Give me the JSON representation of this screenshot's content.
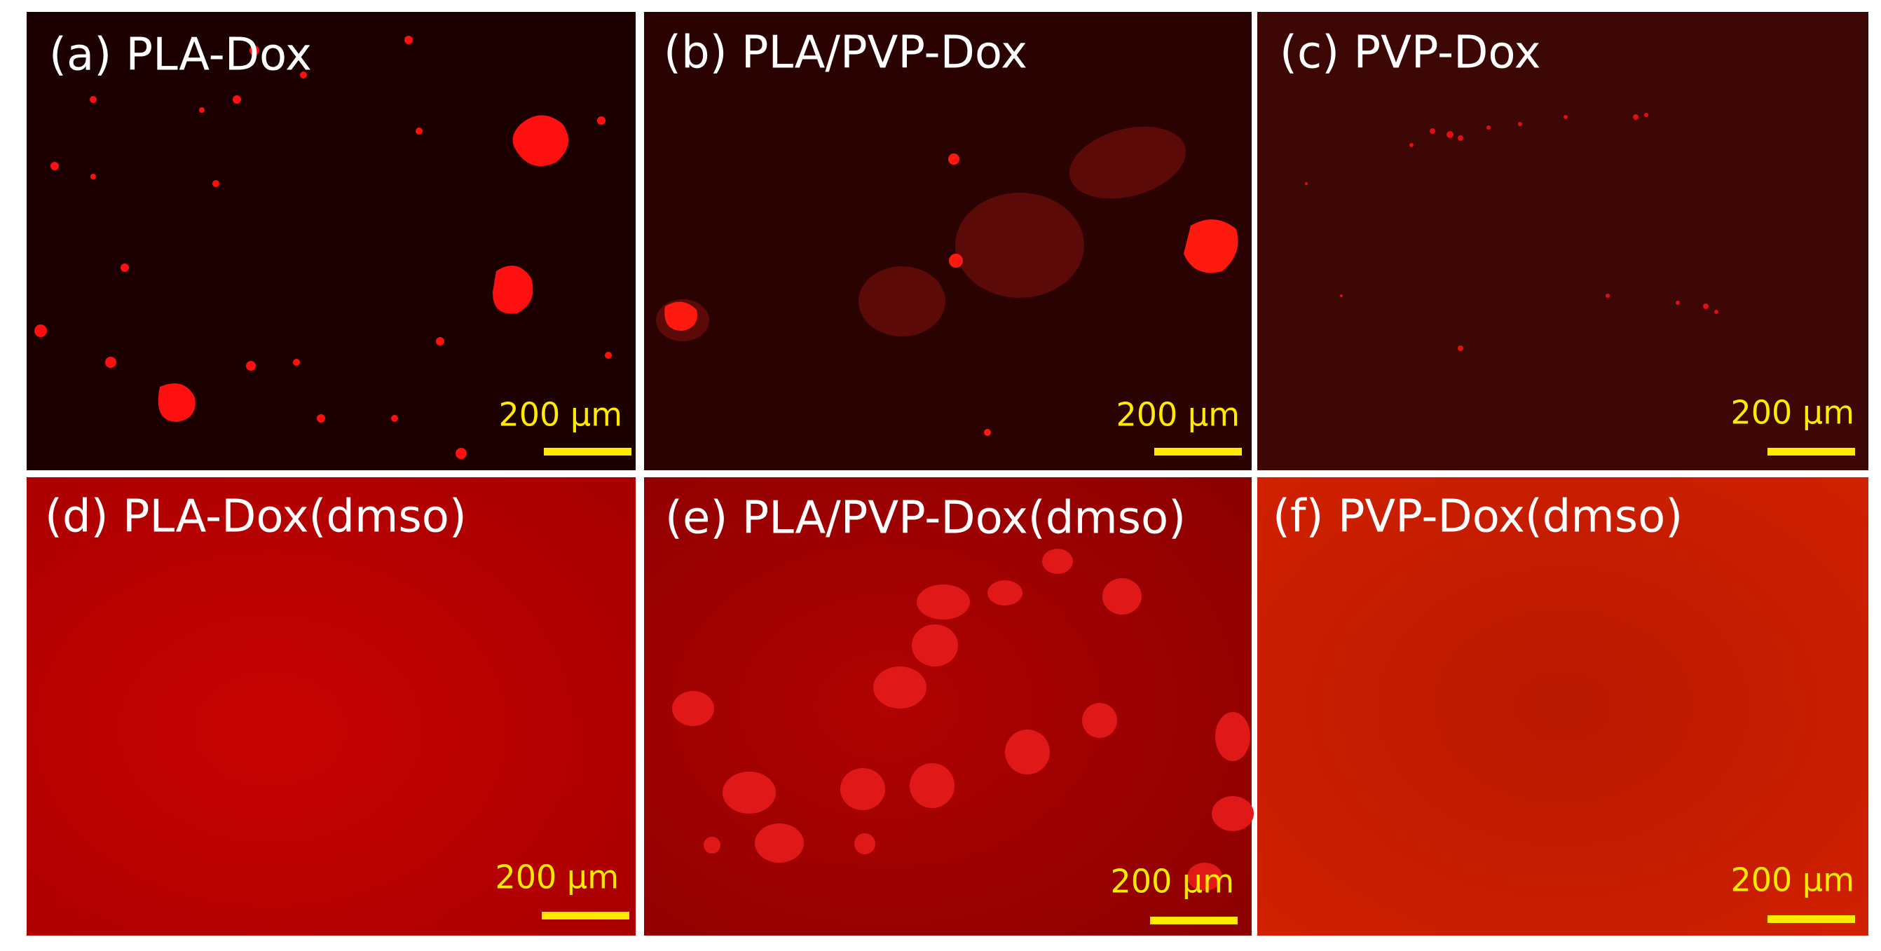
{
  "panels": [
    {
      "label": "(a) PLA-Dox",
      "scale_bar": "200 μm"
    },
    {
      "label": "(b) PLA/PVP-Dox",
      "scale_bar": "200 μm"
    },
    {
      "label": "(c) PVP-Dox",
      "scale_bar": "200 μm"
    },
    {
      "label": "(d) PLA-Dox(dmso)",
      "scale_bar": "200 μm"
    },
    {
      "label": "(e) PLA/PVP-Dox(dmso)",
      "scale_bar": "200 μm"
    },
    {
      "label": "(f) PVP-Dox(dmso)",
      "scale_bar": "200 μm"
    }
  ]
}
